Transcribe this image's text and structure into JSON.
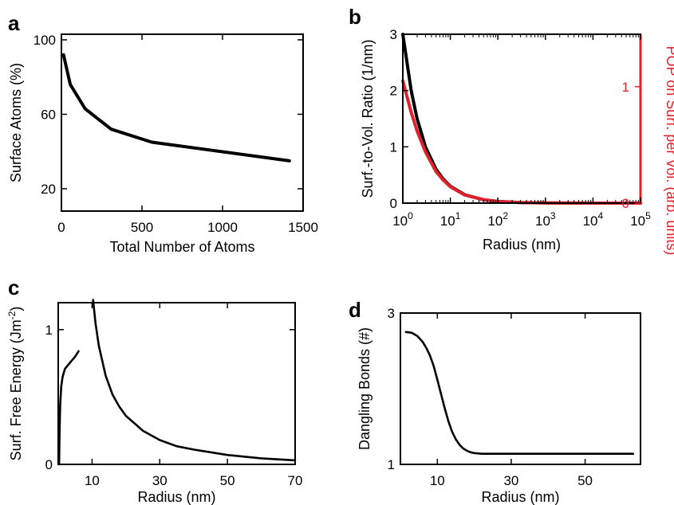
{
  "chart_data": [
    {
      "panel": "a",
      "type": "line",
      "xlabel": "Total Number of Atoms",
      "ylabel": "Surface Atoms (%)",
      "xlim": [
        0,
        1500
      ],
      "ylim": [
        8,
        103
      ],
      "xticks": [
        0,
        500,
        1000,
        1500
      ],
      "yticks": [
        20,
        60,
        100
      ],
      "series": [
        {
          "color": "#000000",
          "x": [
            13,
            55,
            147,
            309,
            561,
            1415
          ],
          "y": [
            92,
            76,
            63,
            52,
            45,
            35
          ]
        }
      ]
    },
    {
      "panel": "b",
      "type": "line",
      "xlabel": "Radius (nm)",
      "ylabel": "Surf.-to-Vol. Ratio (1/nm)",
      "ylabel_right": "POP on Surf. per Vol. (arb. units)",
      "xscale": "log",
      "xlim": [
        1,
        100000
      ],
      "ylim": [
        0,
        3
      ],
      "ylim_right": [
        0,
        1.45
      ],
      "xticks": [
        1,
        10,
        100,
        1000,
        10000,
        100000
      ],
      "xtick_labels": [
        {
          "base": "10",
          "exp": "0"
        },
        {
          "base": "10",
          "exp": "1"
        },
        {
          "base": "10",
          "exp": "2"
        },
        {
          "base": "10",
          "exp": "3"
        },
        {
          "base": "10",
          "exp": "4"
        },
        {
          "base": "10",
          "exp": "5"
        }
      ],
      "yticks": [
        0,
        1,
        2,
        3
      ],
      "yticks_right": [
        0,
        1
      ],
      "series": [
        {
          "color": "#000000",
          "axis": "left",
          "x": [
            1,
            1.5,
            2,
            3,
            5,
            7,
            10,
            20,
            50,
            100,
            300,
            1000,
            10000,
            100000
          ],
          "y": [
            3.0,
            2.0,
            1.5,
            1.0,
            0.6,
            0.43,
            0.3,
            0.15,
            0.06,
            0.03,
            0.01,
            0.003,
            0.0003,
            3e-05
          ]
        },
        {
          "color": "#e0202a",
          "axis": "right",
          "x": [
            1,
            1.5,
            2,
            3,
            5,
            7,
            10,
            20,
            50,
            100,
            300,
            1000,
            10000,
            100000
          ],
          "y": [
            1.05,
            0.78,
            0.62,
            0.44,
            0.27,
            0.2,
            0.14,
            0.07,
            0.03,
            0.014,
            0.005,
            0.0014,
            0.00014,
            1.4e-05
          ]
        }
      ]
    },
    {
      "panel": "c",
      "type": "line",
      "xlabel": "Radius (nm)",
      "ylabel": "Surf. Free Energy (Jm",
      "ylabel_sup": "-2",
      "ylabel_end": ")",
      "xlim": [
        0,
        70
      ],
      "ylim": [
        0,
        1.2
      ],
      "xticks": [
        10,
        30,
        50,
        70
      ],
      "yticks": [
        0,
        1
      ],
      "series": [
        {
          "color": "#000000",
          "x": [
            0.25,
            0.4,
            0.6,
            0.9,
            1.3,
            2,
            3,
            4,
            5,
            6
          ],
          "y": [
            0.0,
            0.25,
            0.45,
            0.58,
            0.65,
            0.71,
            0.74,
            0.77,
            0.8,
            0.84
          ]
        },
        {
          "color": "#000000",
          "x": [
            10.3,
            11,
            12,
            14,
            16,
            18,
            20,
            25,
            30,
            35,
            40,
            50,
            60,
            70
          ],
          "y": [
            1.22,
            1.05,
            0.88,
            0.66,
            0.52,
            0.43,
            0.36,
            0.25,
            0.18,
            0.135,
            0.11,
            0.07,
            0.045,
            0.03
          ]
        }
      ]
    },
    {
      "panel": "d",
      "type": "line",
      "xlabel": "Radius (nm)",
      "ylabel": "Dangling Bonds (#)",
      "xlim": [
        0,
        65
      ],
      "ylim": [
        1,
        3
      ],
      "xticks": [
        10,
        30,
        50
      ],
      "yticks": [
        1,
        3
      ],
      "series": [
        {
          "color": "#000000",
          "x": [
            1.5,
            3,
            4.5,
            6,
            7,
            8,
            9,
            10,
            11,
            12,
            13,
            14,
            15,
            16,
            17,
            18,
            19,
            20,
            22,
            25,
            30,
            40,
            50,
            60,
            63
          ],
          "y": [
            2.75,
            2.74,
            2.7,
            2.62,
            2.54,
            2.44,
            2.3,
            2.12,
            1.93,
            1.74,
            1.57,
            1.43,
            1.33,
            1.26,
            1.21,
            1.18,
            1.16,
            1.15,
            1.14,
            1.14,
            1.14,
            1.14,
            1.14,
            1.14,
            1.14
          ]
        }
      ]
    }
  ]
}
